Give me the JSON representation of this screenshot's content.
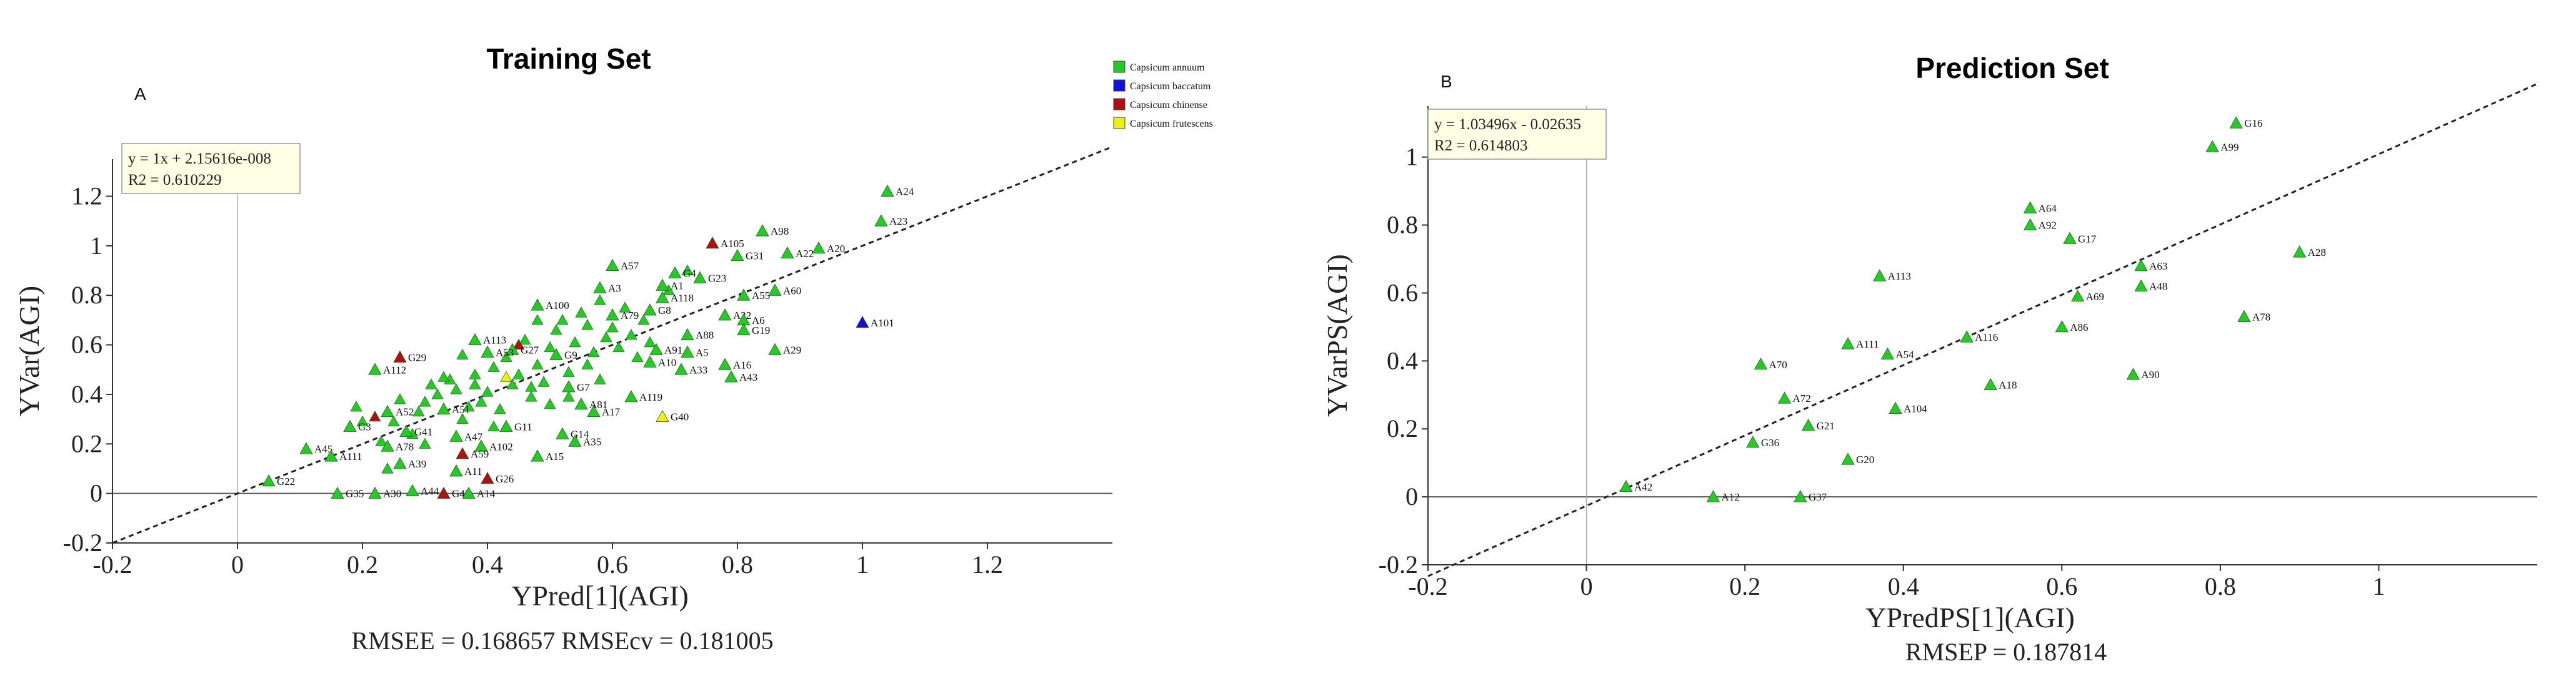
{
  "chart_data": [
    {
      "type": "scatter",
      "panel_label": "A",
      "title": "Training Set",
      "xlabel": "YPred[1](AGI)",
      "ylabel": "YVar(AGI)",
      "xlim": [
        -0.2,
        1.4
      ],
      "ylim": [
        -0.2,
        1.35
      ],
      "xticks": [
        -0.2,
        0,
        0.2,
        0.4,
        0.6,
        0.8,
        1,
        1.2
      ],
      "yticks": [
        -0.2,
        0,
        0.2,
        0.4,
        0.6,
        0.8,
        1,
        1.2
      ],
      "equation": "y = 1x + 2.15616e-008",
      "r2": "R2 = 0.610229",
      "stats": "RMSEE = 0.168657   RMSEcv = 0.181005",
      "fit": {
        "slope": 1,
        "intercept": 0
      },
      "legend": [
        {
          "name": "Capsicum annuum",
          "color": "#22cc22"
        },
        {
          "name": "Capsicum baccatum",
          "color": "#1010e0"
        },
        {
          "name": "Capsicum chinense",
          "color": "#b01010"
        },
        {
          "name": "Capsicum frutescens",
          "color": "#f0f010"
        }
      ],
      "points": [
        {
          "label": "A24",
          "x": 1.04,
          "y": 1.22,
          "group": 0
        },
        {
          "label": "A23",
          "x": 1.03,
          "y": 1.1,
          "group": 0
        },
        {
          "label": "A98",
          "x": 0.84,
          "y": 1.06,
          "group": 0
        },
        {
          "label": "A105",
          "x": 0.76,
          "y": 1.01,
          "group": 2
        },
        {
          "label": "A20",
          "x": 0.93,
          "y": 0.99,
          "group": 0
        },
        {
          "label": "A22",
          "x": 0.88,
          "y": 0.97,
          "group": 0
        },
        {
          "label": "G31",
          "x": 0.8,
          "y": 0.96,
          "group": 0
        },
        {
          "label": "A57",
          "x": 0.6,
          "y": 0.92,
          "group": 0
        },
        {
          "label": "G4",
          "x": 0.7,
          "y": 0.89,
          "group": 0
        },
        {
          "label": "A1",
          "x": 0.68,
          "y": 0.84,
          "group": 0
        },
        {
          "label": "G23",
          "x": 0.74,
          "y": 0.87,
          "group": 0
        },
        {
          "label": "A60",
          "x": 0.86,
          "y": 0.82,
          "group": 0
        },
        {
          "label": "A3",
          "x": 0.58,
          "y": 0.83,
          "group": 0
        },
        {
          "label": "A55",
          "x": 0.81,
          "y": 0.8,
          "group": 0
        },
        {
          "label": "A118",
          "x": 0.68,
          "y": 0.79,
          "group": 0
        },
        {
          "label": "G8",
          "x": 0.66,
          "y": 0.74,
          "group": 0
        },
        {
          "label": "A32",
          "x": 0.78,
          "y": 0.72,
          "group": 0
        },
        {
          "label": "A6",
          "x": 0.81,
          "y": 0.7,
          "group": 0
        },
        {
          "label": "A79",
          "x": 0.6,
          "y": 0.72,
          "group": 0
        },
        {
          "label": "G19",
          "x": 0.81,
          "y": 0.66,
          "group": 0
        },
        {
          "label": "A100",
          "x": 0.48,
          "y": 0.76,
          "group": 0
        },
        {
          "label": "A101",
          "x": 1.0,
          "y": 0.69,
          "group": 1
        },
        {
          "label": "A88",
          "x": 0.72,
          "y": 0.64,
          "group": 0
        },
        {
          "label": "A91",
          "x": 0.67,
          "y": 0.58,
          "group": 0
        },
        {
          "label": "A29",
          "x": 0.86,
          "y": 0.58,
          "group": 0
        },
        {
          "label": "A5",
          "x": 0.72,
          "y": 0.57,
          "group": 0
        },
        {
          "label": "A10",
          "x": 0.66,
          "y": 0.53,
          "group": 0
        },
        {
          "label": "A16",
          "x": 0.78,
          "y": 0.52,
          "group": 0
        },
        {
          "label": "A33",
          "x": 0.71,
          "y": 0.5,
          "group": 0
        },
        {
          "label": "A43",
          "x": 0.79,
          "y": 0.47,
          "group": 0
        },
        {
          "label": "A119",
          "x": 0.63,
          "y": 0.39,
          "group": 0
        },
        {
          "label": "G40",
          "x": 0.68,
          "y": 0.31,
          "group": 3
        },
        {
          "label": "A17",
          "x": 0.57,
          "y": 0.33,
          "group": 0
        },
        {
          "label": "A81",
          "x": 0.55,
          "y": 0.36,
          "group": 0
        },
        {
          "label": "G7",
          "x": 0.53,
          "y": 0.43,
          "group": 0
        },
        {
          "label": "G9",
          "x": 0.51,
          "y": 0.56,
          "group": 0
        },
        {
          "label": "G27",
          "x": 0.44,
          "y": 0.58,
          "group": 0
        },
        {
          "label": "A113",
          "x": 0.38,
          "y": 0.62,
          "group": 0
        },
        {
          "label": "A53",
          "x": 0.4,
          "y": 0.57,
          "group": 0
        },
        {
          "label": "A112",
          "x": 0.22,
          "y": 0.5,
          "group": 0
        },
        {
          "label": "G29",
          "x": 0.26,
          "y": 0.55,
          "group": 2
        },
        {
          "label": "A52",
          "x": 0.24,
          "y": 0.33,
          "group": 0
        },
        {
          "label": "G3",
          "x": 0.18,
          "y": 0.27,
          "group": 0
        },
        {
          "label": "A51",
          "x": 0.33,
          "y": 0.34,
          "group": 0
        },
        {
          "label": "A47",
          "x": 0.35,
          "y": 0.23,
          "group": 0
        },
        {
          "label": "A102",
          "x": 0.39,
          "y": 0.19,
          "group": 0
        },
        {
          "label": "G11",
          "x": 0.43,
          "y": 0.27,
          "group": 0
        },
        {
          "label": "G14",
          "x": 0.52,
          "y": 0.24,
          "group": 0
        },
        {
          "label": "A35",
          "x": 0.54,
          "y": 0.21,
          "group": 0
        },
        {
          "label": "A15",
          "x": 0.48,
          "y": 0.15,
          "group": 0
        },
        {
          "label": "A45",
          "x": 0.11,
          "y": 0.18,
          "group": 0
        },
        {
          "label": "G41",
          "x": 0.27,
          "y": 0.25,
          "group": 0
        },
        {
          "label": "A78",
          "x": 0.24,
          "y": 0.19,
          "group": 0
        },
        {
          "label": "A111",
          "x": 0.15,
          "y": 0.15,
          "group": 0
        },
        {
          "label": "A39",
          "x": 0.26,
          "y": 0.12,
          "group": 0
        },
        {
          "label": "A59",
          "x": 0.36,
          "y": 0.16,
          "group": 2
        },
        {
          "label": "A11",
          "x": 0.35,
          "y": 0.09,
          "group": 0
        },
        {
          "label": "G26",
          "x": 0.4,
          "y": 0.06,
          "group": 2
        },
        {
          "label": "G22",
          "x": 0.05,
          "y": 0.05,
          "group": 0
        },
        {
          "label": "G35",
          "x": 0.16,
          "y": 0.0,
          "group": 0
        },
        {
          "label": "A30",
          "x": 0.22,
          "y": 0.0,
          "group": 0
        },
        {
          "label": "A44",
          "x": 0.28,
          "y": 0.01,
          "group": 0
        },
        {
          "label": "G42",
          "x": 0.33,
          "y": 0.0,
          "group": 2
        },
        {
          "label": "A14",
          "x": 0.37,
          "y": 0.0,
          "group": 0
        }
      ],
      "cluster_points": [
        [
          0.2,
          0.29,
          0
        ],
        [
          0.22,
          0.31,
          2
        ],
        [
          0.23,
          0.21,
          0
        ],
        [
          0.25,
          0.29,
          0
        ],
        [
          0.26,
          0.38,
          0
        ],
        [
          0.28,
          0.24,
          0
        ],
        [
          0.3,
          0.37,
          0
        ],
        [
          0.31,
          0.44,
          0
        ],
        [
          0.32,
          0.4,
          0
        ],
        [
          0.34,
          0.46,
          0
        ],
        [
          0.35,
          0.42,
          0
        ],
        [
          0.36,
          0.3,
          0
        ],
        [
          0.37,
          0.35,
          0
        ],
        [
          0.38,
          0.48,
          0
        ],
        [
          0.39,
          0.37,
          0
        ],
        [
          0.4,
          0.41,
          0
        ],
        [
          0.41,
          0.51,
          0
        ],
        [
          0.42,
          0.34,
          0
        ],
        [
          0.43,
          0.55,
          0
        ],
        [
          0.44,
          0.44,
          0
        ],
        [
          0.45,
          0.48,
          0
        ],
        [
          0.46,
          0.62,
          0
        ],
        [
          0.47,
          0.39,
          0
        ],
        [
          0.48,
          0.52,
          0
        ],
        [
          0.49,
          0.45,
          0
        ],
        [
          0.5,
          0.59,
          0
        ],
        [
          0.51,
          0.66,
          0
        ],
        [
          0.52,
          0.7,
          0
        ],
        [
          0.53,
          0.49,
          0
        ],
        [
          0.54,
          0.61,
          0
        ],
        [
          0.55,
          0.73,
          0
        ],
        [
          0.56,
          0.68,
          0
        ],
        [
          0.57,
          0.57,
          0
        ],
        [
          0.58,
          0.46,
          0
        ],
        [
          0.59,
          0.63,
          0
        ],
        [
          0.6,
          0.67,
          0
        ],
        [
          0.61,
          0.59,
          0
        ],
        [
          0.62,
          0.75,
          0
        ],
        [
          0.63,
          0.64,
          0
        ],
        [
          0.64,
          0.55,
          0
        ],
        [
          0.65,
          0.7,
          0
        ],
        [
          0.66,
          0.61,
          0
        ],
        [
          0.43,
          0.47,
          3
        ],
        [
          0.45,
          0.6,
          2
        ],
        [
          0.47,
          0.43,
          0
        ],
        [
          0.38,
          0.44,
          0
        ],
        [
          0.33,
          0.47,
          0
        ],
        [
          0.29,
          0.33,
          0
        ],
        [
          0.53,
          0.39,
          0
        ],
        [
          0.56,
          0.52,
          0
        ],
        [
          0.36,
          0.56,
          0
        ],
        [
          0.5,
          0.36,
          0
        ],
        [
          0.58,
          0.78,
          0
        ],
        [
          0.69,
          0.82,
          0
        ],
        [
          0.72,
          0.9,
          0
        ],
        [
          0.48,
          0.7,
          0
        ],
        [
          0.3,
          0.2,
          0
        ],
        [
          0.24,
          0.1,
          0
        ],
        [
          0.19,
          0.35,
          0
        ],
        [
          0.41,
          0.27,
          0
        ]
      ]
    },
    {
      "type": "scatter",
      "panel_label": "B",
      "title": "Prediction Set",
      "xlabel": "YPredPS[1](AGI)",
      "ylabel": "YVarPS(AGI)",
      "xlim": [
        -0.2,
        1.2
      ],
      "ylim": [
        -0.2,
        1.15
      ],
      "xticks": [
        -0.2,
        0,
        0.2,
        0.4,
        0.6,
        0.8,
        1
      ],
      "yticks": [
        -0.2,
        0,
        0.2,
        0.4,
        0.6,
        0.8,
        1
      ],
      "equation": "y = 1.03496x - 0.02635",
      "r2": "R2 = 0.614803",
      "stats": "RMSEP = 0.187814",
      "fit": {
        "slope": 1.03496,
        "intercept": -0.02635
      },
      "points": [
        {
          "label": "G16",
          "x": 0.82,
          "y": 1.1
        },
        {
          "label": "A99",
          "x": 0.79,
          "y": 1.03
        },
        {
          "label": "A64",
          "x": 0.56,
          "y": 0.85
        },
        {
          "label": "A92",
          "x": 0.56,
          "y": 0.8
        },
        {
          "label": "G17",
          "x": 0.61,
          "y": 0.76
        },
        {
          "label": "A28",
          "x": 0.9,
          "y": 0.72
        },
        {
          "label": "A63",
          "x": 0.7,
          "y": 0.68
        },
        {
          "label": "A113",
          "x": 0.37,
          "y": 0.65
        },
        {
          "label": "A48",
          "x": 0.7,
          "y": 0.62
        },
        {
          "label": "A69",
          "x": 0.62,
          "y": 0.59
        },
        {
          "label": "A78",
          "x": 0.83,
          "y": 0.53
        },
        {
          "label": "A86",
          "x": 0.6,
          "y": 0.5
        },
        {
          "label": "A116",
          "x": 0.48,
          "y": 0.47
        },
        {
          "label": "A111",
          "x": 0.33,
          "y": 0.45
        },
        {
          "label": "A54",
          "x": 0.38,
          "y": 0.42
        },
        {
          "label": "A70",
          "x": 0.22,
          "y": 0.39
        },
        {
          "label": "A90",
          "x": 0.69,
          "y": 0.36
        },
        {
          "label": "A18",
          "x": 0.51,
          "y": 0.33
        },
        {
          "label": "A72",
          "x": 0.25,
          "y": 0.29
        },
        {
          "label": "A104",
          "x": 0.39,
          "y": 0.26
        },
        {
          "label": "G21",
          "x": 0.28,
          "y": 0.21
        },
        {
          "label": "G36",
          "x": 0.21,
          "y": 0.16
        },
        {
          "label": "G20",
          "x": 0.33,
          "y": 0.11
        },
        {
          "label": "A42",
          "x": 0.05,
          "y": 0.03
        },
        {
          "label": "A12",
          "x": 0.16,
          "y": 0.0
        },
        {
          "label": "G37",
          "x": 0.27,
          "y": 0.0
        }
      ]
    }
  ]
}
